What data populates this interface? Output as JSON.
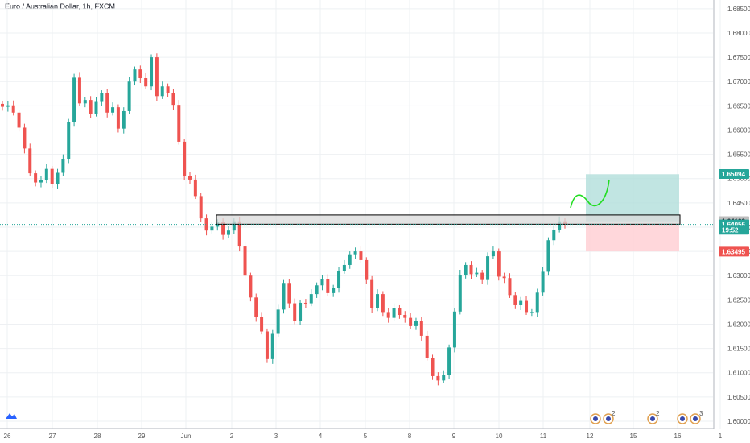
{
  "chart_data": {
    "type": "candlestick",
    "title": "Euro / Australian Dollar, 1h, FXCM",
    "y_ticks": [
      "1.68500",
      "1.68000",
      "1.67500",
      "1.67000",
      "1.66500",
      "1.66000",
      "1.65500",
      "1.65000",
      "1.64500",
      "1.64000",
      "1.63500",
      "1.63000",
      "1.62500",
      "1.62000",
      "1.61500",
      "1.61000",
      "1.60500",
      "1.60000"
    ],
    "ylim": [
      1.5985,
      1.6868
    ],
    "x_ticks": [
      "26",
      "27",
      "28",
      "29",
      "Jun",
      "2",
      "3",
      "4",
      "5",
      "8",
      "9",
      "10",
      "11",
      "12",
      "15",
      "16",
      "1"
    ],
    "close_series": [
      1.6648,
      1.6651,
      1.6636,
      1.6605,
      1.6562,
      1.6511,
      1.6492,
      1.6497,
      1.652,
      1.6488,
      1.6512,
      1.654,
      1.6617,
      1.6708,
      1.6655,
      1.6662,
      1.6634,
      1.6658,
      1.6676,
      1.6636,
      1.6647,
      1.6603,
      1.6639,
      1.67,
      1.6725,
      1.6707,
      1.669,
      1.675,
      1.667,
      1.669,
      1.6676,
      1.6652,
      1.6576,
      1.6505,
      1.6498,
      1.6464,
      1.6418,
      1.6393,
      1.6401,
      1.641,
      1.6384,
      1.6393,
      1.6412,
      1.636,
      1.63,
      1.6255,
      1.6215,
      1.6185,
      1.6128,
      1.618,
      1.623,
      1.6285,
      1.6243,
      1.6206,
      1.6244,
      1.6243,
      1.6262,
      1.628,
      1.6293,
      1.6264,
      1.6275,
      1.631,
      1.6322,
      1.6344,
      1.635,
      1.6332,
      1.6291,
      1.6233,
      1.6262,
      1.6225,
      1.6213,
      1.6233,
      1.6219,
      1.6213,
      1.6196,
      1.6207,
      1.6176,
      1.6131,
      1.6093,
      1.6084,
      1.6095,
      1.6152,
      1.6226,
      1.6302,
      1.6322,
      1.6303,
      1.6306,
      1.6291,
      1.634,
      1.635,
      1.6298,
      1.6295,
      1.626,
      1.6239,
      1.6248,
      1.6225,
      1.6225,
      1.6265,
      1.6308,
      1.6373,
      1.6395,
      1.6412,
      1.6405
    ],
    "zones": {
      "resistance": [
        1.6406,
        1.6425
      ],
      "target": [
        1.6509,
        1.6412
      ],
      "stop": [
        1.6406,
        1.635
      ]
    },
    "price_badges": [
      {
        "label": "1.65094",
        "value": 1.65094,
        "color": "#26a69a"
      },
      {
        "label": "1.64123",
        "value": 1.64123,
        "color": "#bdbdbd"
      },
      {
        "label": "1.64056",
        "value": 1.64056,
        "color": "#26a69a"
      },
      {
        "label": "19:52",
        "value": 1.63945,
        "color": "#26a69a"
      },
      {
        "label": "1.63495",
        "value": 1.63495,
        "color": "#ef5350"
      }
    ],
    "last_price": 1.64056,
    "grid": true,
    "colors": {
      "up": "#26a69a",
      "down": "#ef5350",
      "zone_box": "#d9d9d9",
      "target_fill": "#b2dfdb",
      "stop_fill": "#ffcdd2",
      "arrow": "#22dd22"
    },
    "event_labels": [
      "2",
      "2",
      "3"
    ]
  }
}
